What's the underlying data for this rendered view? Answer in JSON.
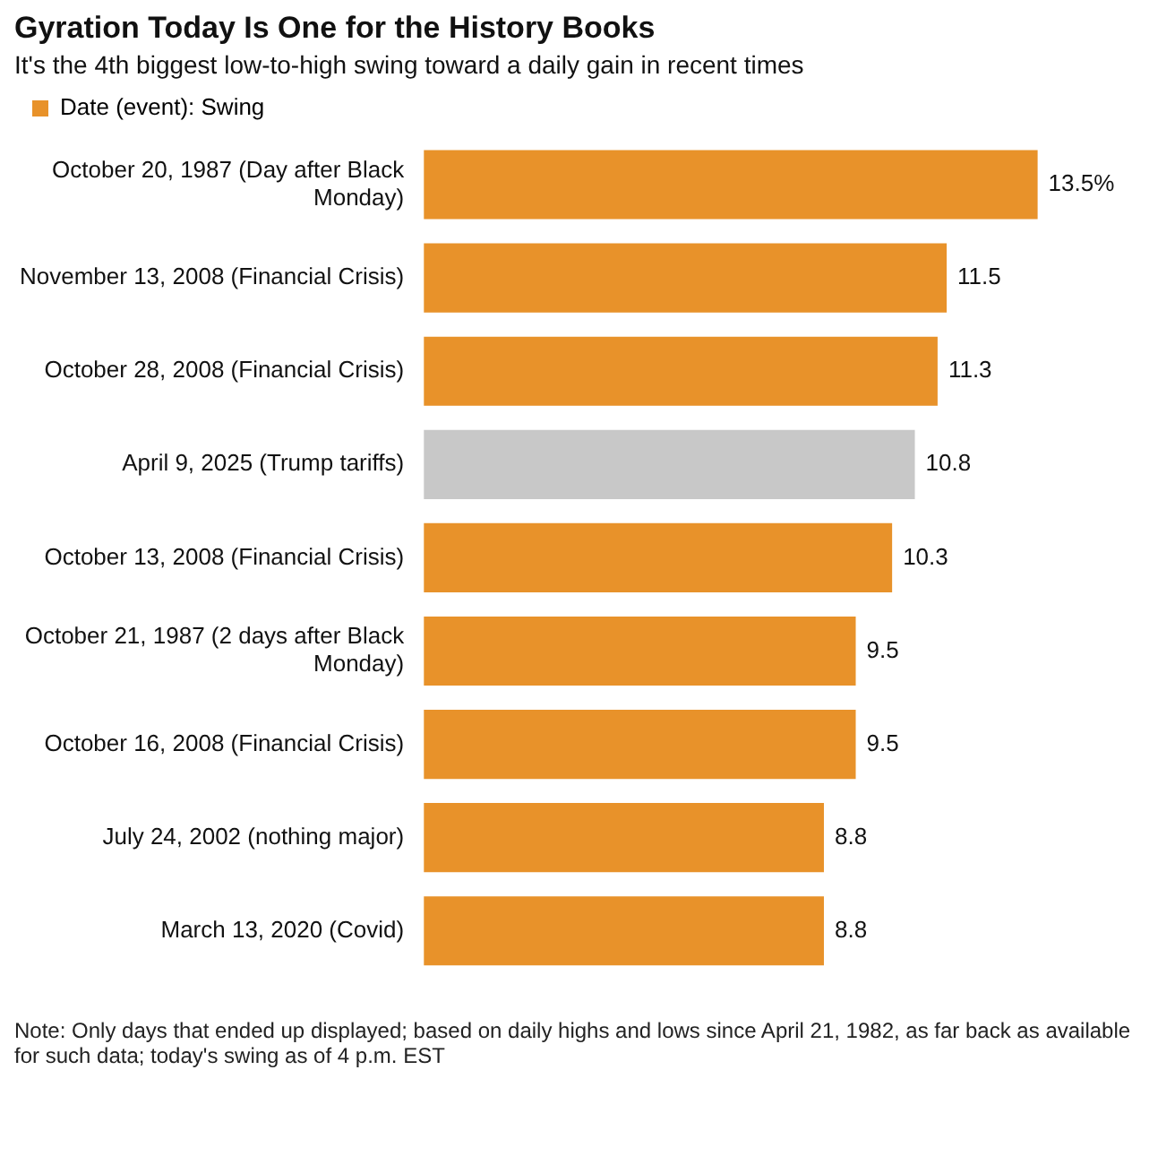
{
  "chart_data": {
    "type": "bar",
    "orientation": "horizontal",
    "title": "Gyration Today Is One for the History Books",
    "subtitle": "It's the 4th biggest low-to-high swing toward a daily gain in recent times",
    "categories": [
      "October 20, 1987 (Day after Black Monday)",
      "November 13, 2008 (Financial Crisis)",
      "October 28, 2008 (Financial Crisis)",
      "April 9, 2025 (Trump tariffs)",
      "October 13, 2008 (Financial Crisis)",
      "October 21, 1987 (2 days after Black Monday)",
      "October 16, 2008 (Financial Crisis)",
      "July 24, 2002 (nothing major)",
      "March 13, 2020 (Covid)"
    ],
    "series": [
      {
        "name": "Date (event): Swing",
        "color": "#e8922a",
        "colors": [
          "#e8922a",
          "#e8922a",
          "#e8922a",
          "#c8c8c8",
          "#e8922a",
          "#e8922a",
          "#e8922a",
          "#e8922a",
          "#e8922a"
        ],
        "values": [
          13.5,
          11.5,
          11.3,
          10.8,
          10.3,
          9.5,
          9.5,
          8.8,
          8.8
        ],
        "value_labels": [
          "13.5%",
          "11.5",
          "11.3",
          "10.8",
          "10.3",
          "9.5",
          "9.5",
          "8.8",
          "8.8"
        ]
      }
    ],
    "legend": "top left",
    "tick_labels": "y",
    "annotations": [
      "Note: Only days that ended up displayed; based on daily highs and lows since April 21, 1982, as far back as available for such data; today's swing as of 4 p.m. EST"
    ]
  }
}
